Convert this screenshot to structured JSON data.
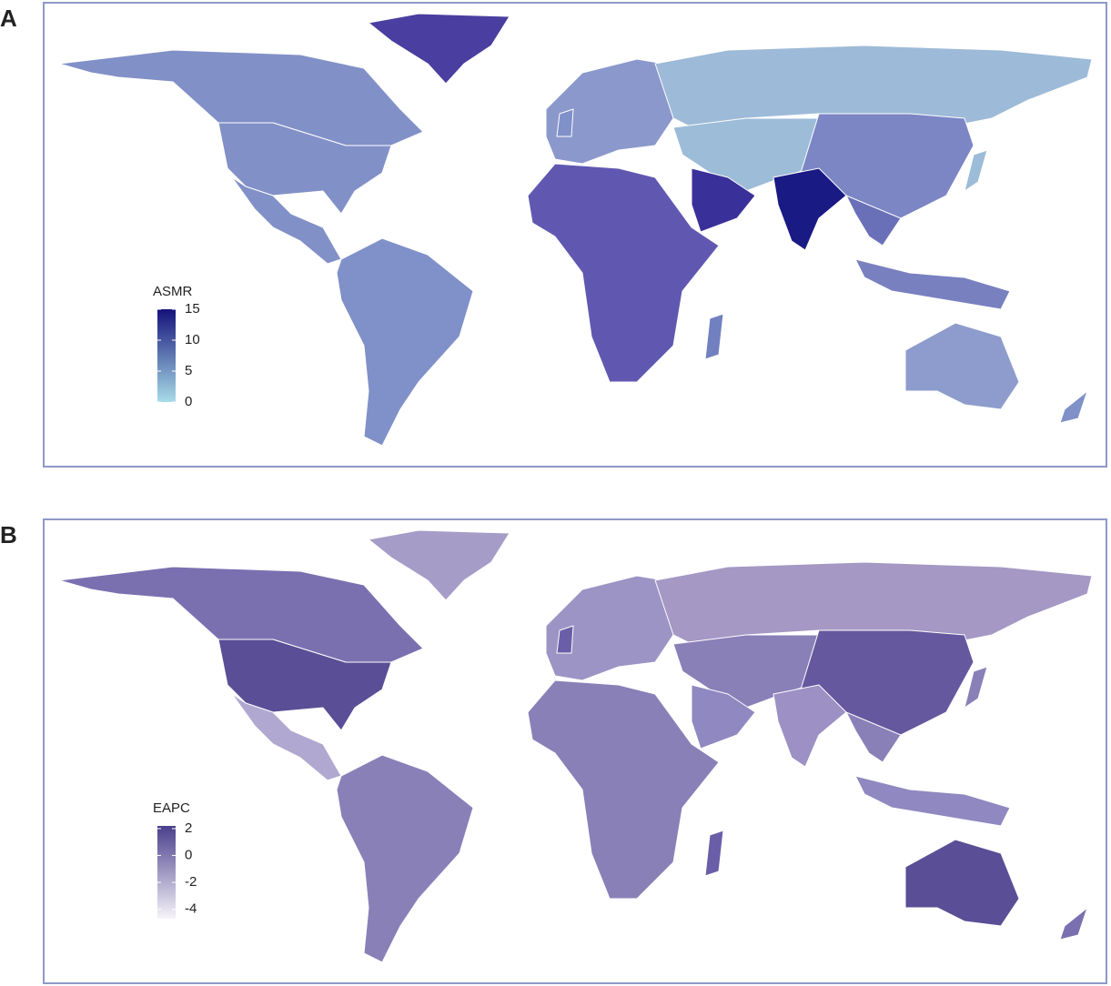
{
  "panels": [
    {
      "label": "A",
      "legend": {
        "title": "ASMR",
        "lim": [
          0,
          15
        ],
        "ticks": [
          0,
          5,
          10,
          15
        ],
        "colors": [
          "#a8dce8",
          "#14127a"
        ]
      }
    },
    {
      "label": "B",
      "legend": {
        "title": "EAPC",
        "lim": [
          -4.7,
          2.2
        ],
        "ticks": [
          -4,
          -2,
          0,
          2
        ],
        "colors": [
          "#f6f4fa",
          "#4a3f8c"
        ]
      }
    }
  ]
}
